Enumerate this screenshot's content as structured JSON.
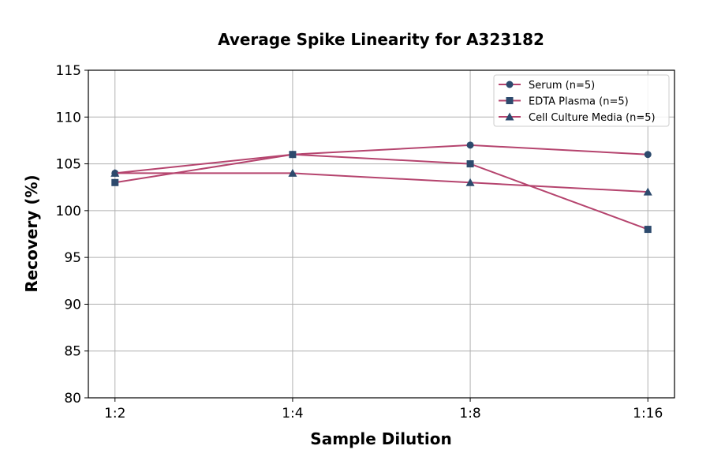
{
  "chart_data": {
    "type": "line",
    "title": "Average Spike Linearity for A323182",
    "xlabel": "Sample Dilution",
    "ylabel": "Recovery (%)",
    "categories": [
      "1:2",
      "1:4",
      "1:8",
      "1:16"
    ],
    "ylim": [
      80,
      115
    ],
    "yticks": [
      80,
      85,
      90,
      95,
      100,
      105,
      110,
      115
    ],
    "grid": true,
    "legend_placement": "top-right",
    "line_color": "#b5446e",
    "marker_color": "#2d4a6d",
    "series": [
      {
        "name": "Serum (n=5)",
        "marker": "circle",
        "values": [
          104,
          106,
          107,
          106
        ]
      },
      {
        "name": "EDTA Plasma (n=5)",
        "marker": "square",
        "values": [
          103,
          106,
          105,
          98
        ]
      },
      {
        "name": "Cell Culture Media (n=5)",
        "marker": "triangle",
        "values": [
          104,
          104,
          103,
          102
        ]
      }
    ]
  }
}
